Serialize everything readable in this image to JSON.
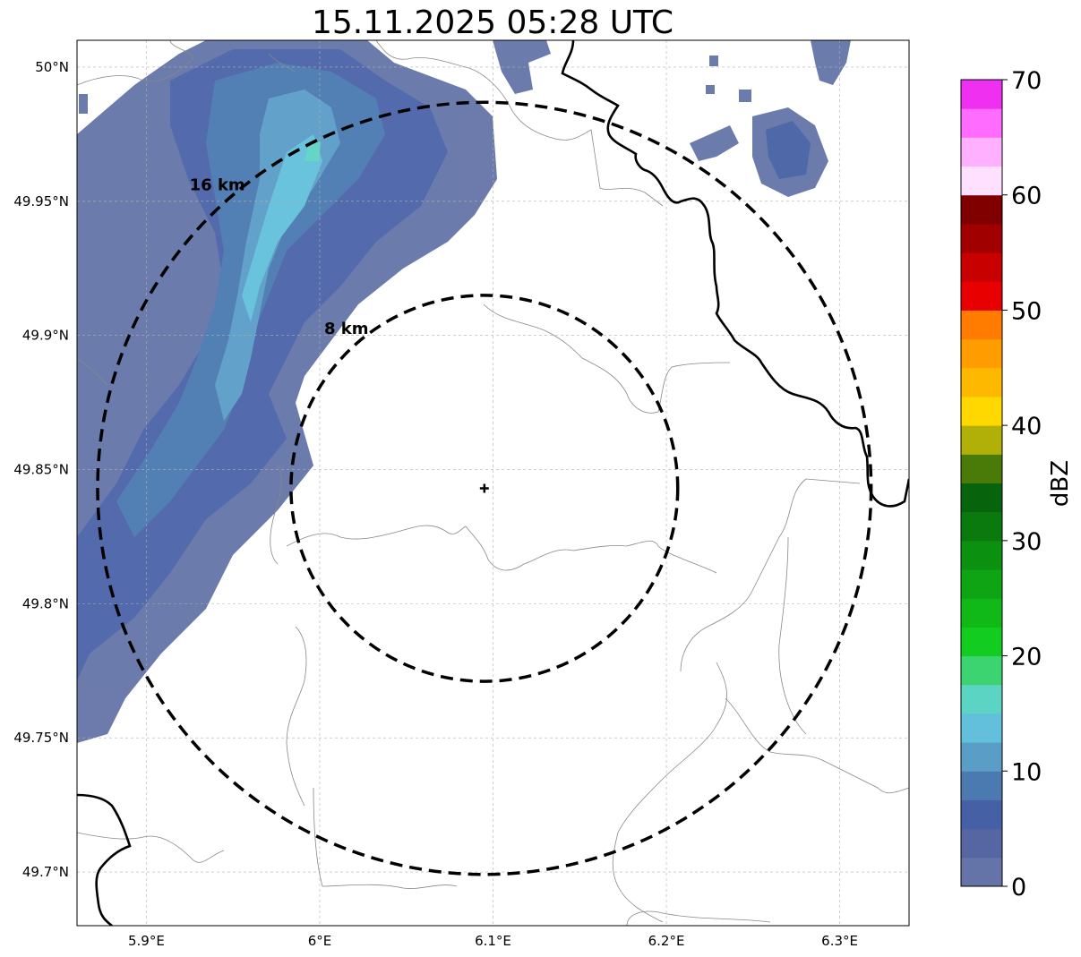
{
  "title": "15.11.2025 05:28 UTC",
  "map": {
    "lon_range": [
      5.86,
      6.34
    ],
    "lat_range": [
      49.68,
      50.01
    ],
    "lon_ticks": [
      {
        "value": 5.9,
        "label": "5.9°E"
      },
      {
        "value": 6.0,
        "label": "6°E"
      },
      {
        "value": 6.1,
        "label": "6.1°E"
      },
      {
        "value": 6.2,
        "label": "6.2°E"
      },
      {
        "value": 6.3,
        "label": "6.3°E"
      }
    ],
    "lat_ticks": [
      {
        "value": 50.0,
        "label": "50°N"
      },
      {
        "value": 49.95,
        "label": "49.95°N"
      },
      {
        "value": 49.9,
        "label": "49.9°N"
      },
      {
        "value": 49.85,
        "label": "49.85°N"
      },
      {
        "value": 49.8,
        "label": "49.8°N"
      },
      {
        "value": 49.75,
        "label": "49.75°N"
      },
      {
        "value": 49.7,
        "label": "49.7°N"
      }
    ],
    "radar_site": {
      "lon": 6.095,
      "lat": 49.843
    },
    "range_rings": [
      {
        "radius_km": 8,
        "label": "8 km"
      },
      {
        "radius_km": 16,
        "label": "16 km"
      }
    ]
  },
  "colorbar": {
    "label": "dBZ",
    "min": 0,
    "max": 70,
    "ticks": [
      {
        "value": 0,
        "label": "0"
      },
      {
        "value": 10,
        "label": "10"
      },
      {
        "value": 20,
        "label": "20"
      },
      {
        "value": 30,
        "label": "30"
      },
      {
        "value": 40,
        "label": "40"
      },
      {
        "value": 50,
        "label": "50"
      },
      {
        "value": 60,
        "label": "60"
      },
      {
        "value": 70,
        "label": "70"
      }
    ],
    "colors": [
      "#6474a8",
      "#5566a2",
      "#4560a4",
      "#4a7ab0",
      "#5a9ec8",
      "#62c0dc",
      "#5cd4c4",
      "#3cd470",
      "#12cc20",
      "#10b818",
      "#0ea414",
      "#0c9010",
      "#0a7a0e",
      "#08640c",
      "#4a7a08",
      "#b0b008",
      "#ffd800",
      "#ffb800",
      "#ff9c00",
      "#ff7c00",
      "#e80000",
      "#c80000",
      "#a00000",
      "#800000",
      "#ffe0ff",
      "#ffb0ff",
      "#ff6cff",
      "#f030f0"
    ]
  }
}
